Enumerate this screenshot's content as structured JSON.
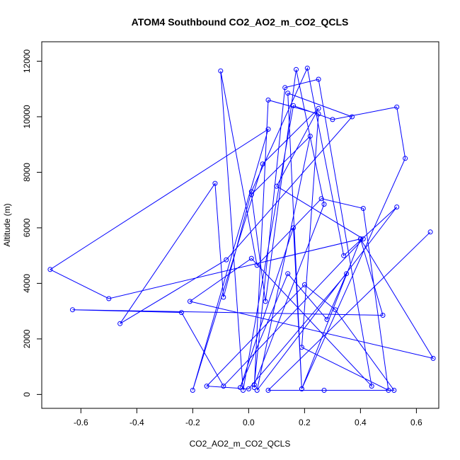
{
  "chart_data": {
    "type": "scatter",
    "title": "ATOM4 Southbound CO2_AO2_m_CO2_QCLS",
    "xlabel": "CO2_AO2_m_CO2_QCLS",
    "ylabel": "Altitude (m)",
    "xlim": [
      -0.74,
      0.68
    ],
    "ylim": [
      -500,
      12700
    ],
    "x_ticks": [
      -0.6,
      -0.4,
      -0.2,
      0.0,
      0.2,
      0.4,
      0.6
    ],
    "x_tick_labels": [
      "-0.6",
      "-0.4",
      "-0.2",
      "0.0",
      "0.2",
      "0.4",
      "0.6"
    ],
    "y_ticks": [
      0,
      2000,
      4000,
      6000,
      8000,
      10000,
      12000
    ],
    "y_tick_labels": [
      "0",
      "2000",
      "4000",
      "6000",
      "8000",
      "10000",
      "12000"
    ],
    "grid": false,
    "colors": {
      "series": "#0000ff"
    },
    "series": [
      {
        "style": "lines+points",
        "x": [
          0.02,
          0.07,
          0.25,
          0.19,
          0.5,
          0.41,
          0.26,
          0.03,
          -0.1,
          -0.02,
          0.16,
          0.3,
          0.53,
          0.56,
          0.19,
          0.14,
          0.37,
          -0.08,
          -0.46,
          -0.12,
          -0.09,
          0.01,
          0.21,
          0.34,
          0.53,
          0.03,
          0.22,
          0.01,
          0.06,
          0.17,
          0.27,
          0.02,
          0.13,
          0.25,
          0.44,
          0.01,
          -0.21,
          0.66,
          0.4,
          0.48,
          -0.63,
          -0.24,
          -0.09,
          0.41,
          0.1,
          0.25,
          0.05,
          -0.2,
          0.07,
          -0.71,
          -0.5,
          0.4,
          0.19,
          0.16,
          -0.03,
          0.14,
          0.28,
          0.35,
          0.0,
          -0.15,
          0.2,
          0.31,
          0.52,
          0.27,
          0.07,
          0.65
        ],
        "y": [
          250,
          10600,
          10100,
          1700,
          150,
          6700,
          7050,
          4650,
          11650,
          150,
          10400,
          9900,
          10350,
          8500,
          200,
          10850,
          10000,
          4850,
          2550,
          7600,
          3500,
          7300,
          11750,
          5000,
          6750,
          150,
          9300,
          7200,
          3350,
          11700,
          6850,
          350,
          11050,
          11350,
          300,
          4900,
          3350,
          1300,
          5600,
          2850,
          3050,
          2950,
          300,
          5600,
          7500,
          10300,
          8300,
          150,
          9550,
          4500,
          3450,
          5600,
          200,
          6000,
          250,
          4350,
          2700,
          4350,
          200,
          300,
          3950,
          3050,
          150,
          150,
          150,
          5850
        ]
      }
    ]
  }
}
